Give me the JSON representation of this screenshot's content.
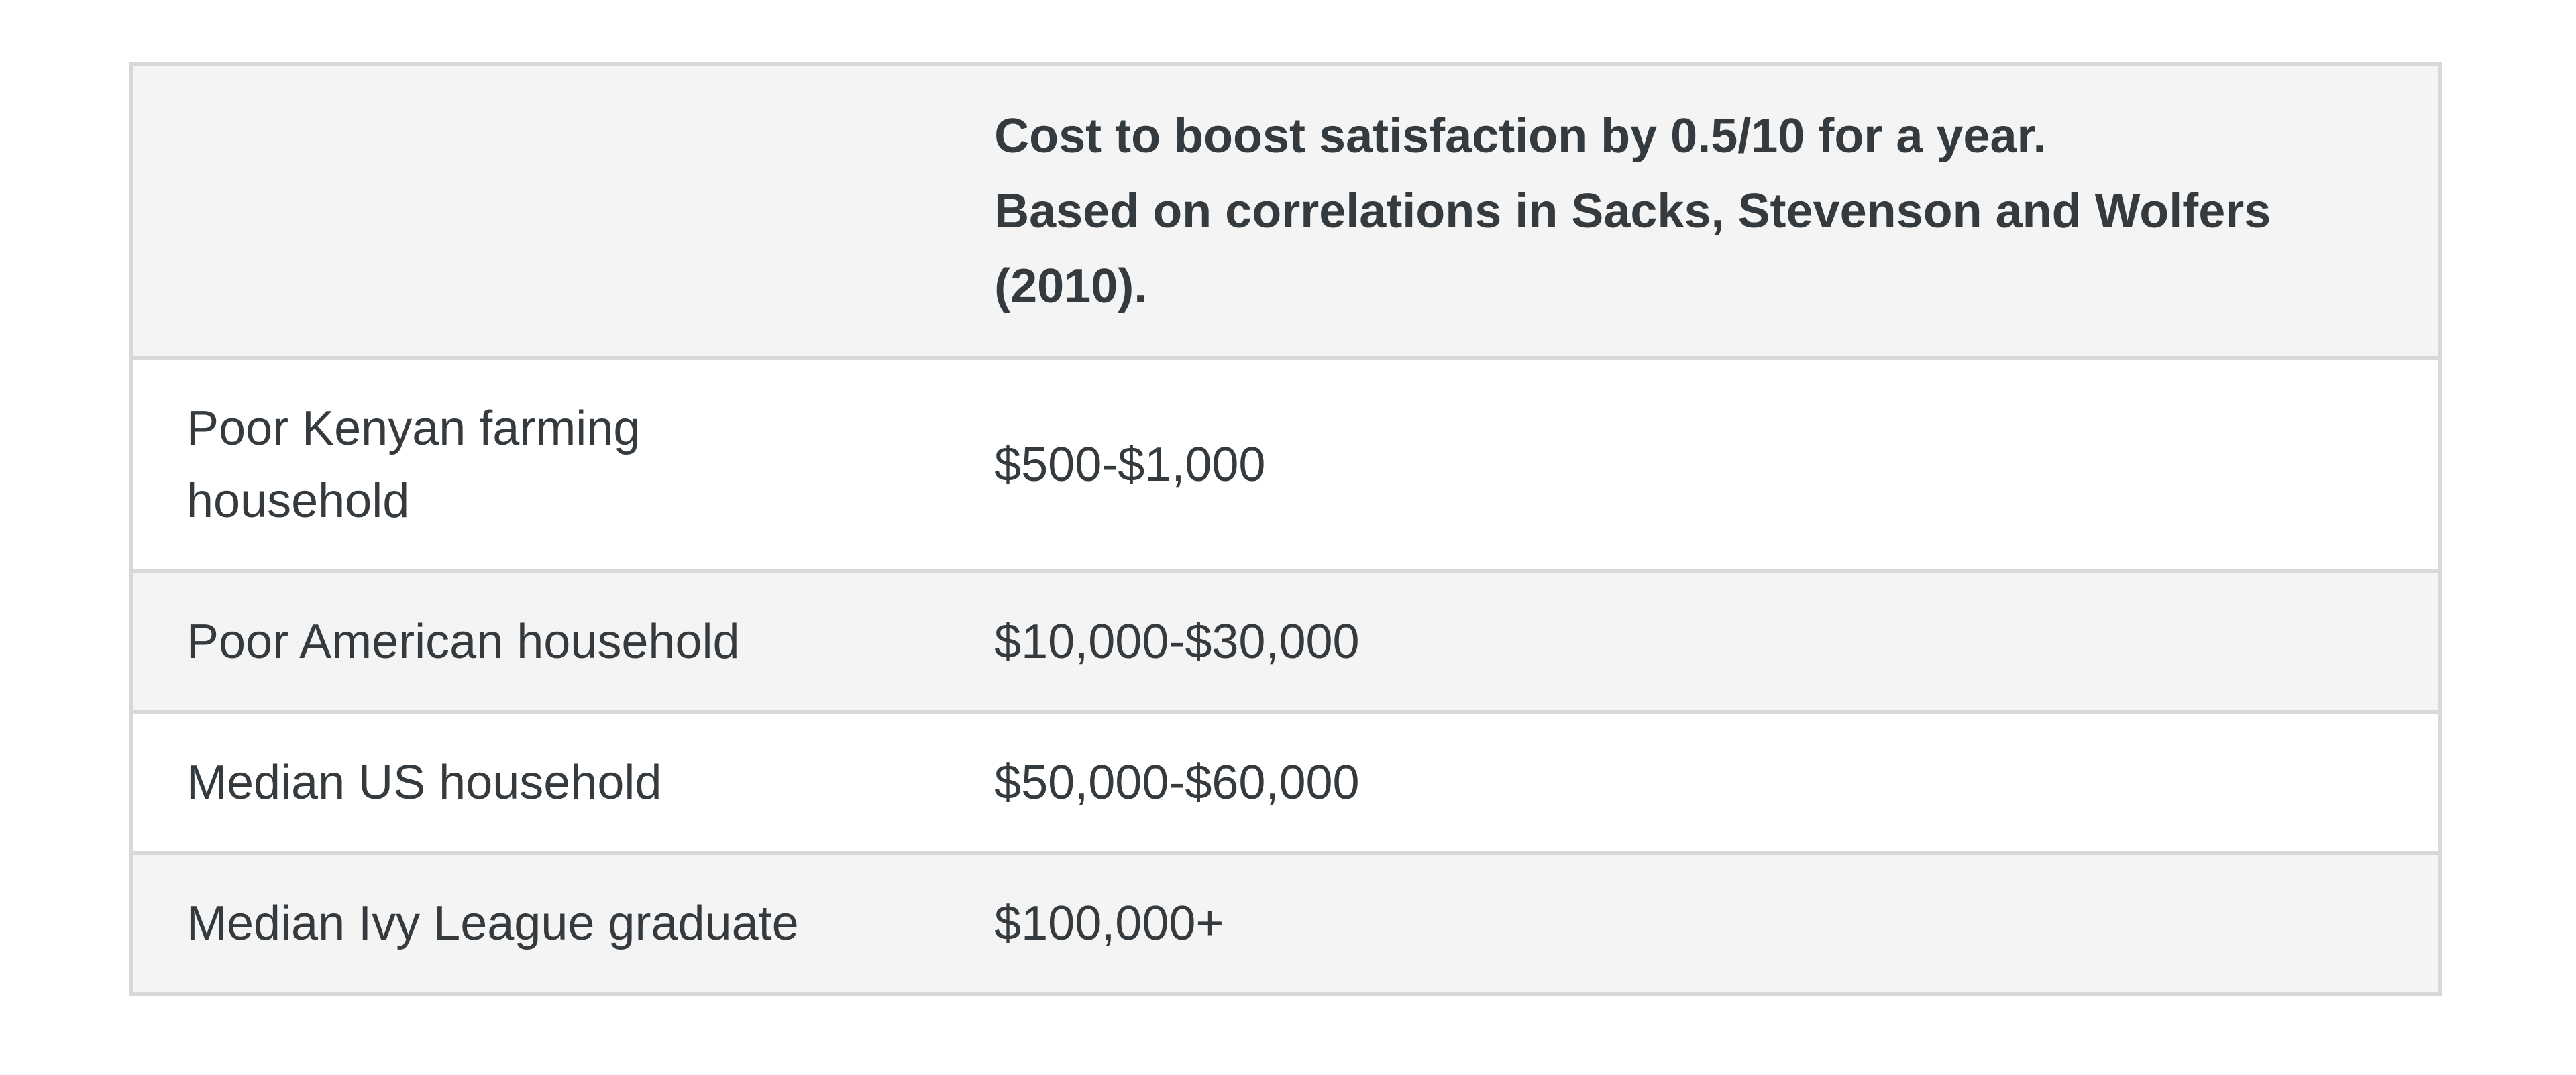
{
  "page": {
    "background": "#ffffff"
  },
  "table": {
    "header": {
      "label_column": "",
      "title_line1": "Cost to boost satisfaction by 0.5/10 for a year.",
      "title_line2": "Based on correlations in Sacks, Stevenson and Wolfers (2010)."
    },
    "rows": [
      {
        "label": "Poor Kenyan farming household",
        "value": "$500-$1,000"
      },
      {
        "label": "Poor American household",
        "value": "$10,000-$30,000"
      },
      {
        "label": "Median US household",
        "value": "$50,000-$60,000"
      },
      {
        "label": "Median Ivy League graduate",
        "value": "$100,000+"
      }
    ],
    "style": {
      "stripe_color": "#f4f4f4",
      "border_color": "#d8d8d8",
      "text_color": "#343a3e",
      "background_color": "#ffffff"
    }
  },
  "chart_data": {
    "type": "table",
    "title": "Cost to boost satisfaction by 0.5/10 for a year. Based on correlations in Sacks, Stevenson and Wolfers (2010).",
    "columns": [
      "",
      "Cost to boost satisfaction by 0.5/10 for a year. Based on correlations in Sacks, Stevenson and Wolfers (2010)."
    ],
    "categories": [
      "Poor Kenyan farming household",
      "Poor American household",
      "Median US household",
      "Median Ivy League graduate"
    ],
    "values": [
      "$500-$1,000",
      "$10,000-$30,000",
      "$50,000-$60,000",
      "$100,000+"
    ],
    "layout_hints": {
      "striped_rows": true,
      "header_background": "#f4f4f4",
      "grid": "horizontal-only"
    }
  }
}
